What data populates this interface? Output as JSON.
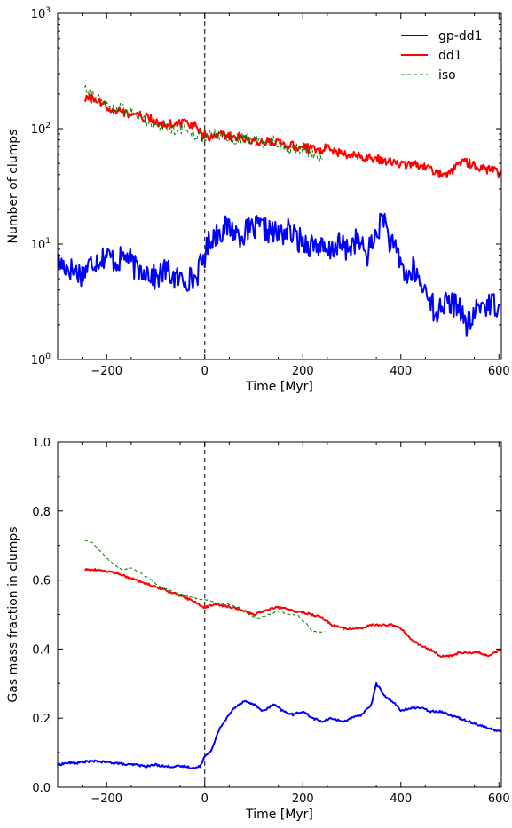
{
  "chart_data": [
    {
      "type": "line",
      "xlabel": "Time [Myr]",
      "ylabel": "Number of clumps",
      "yscale": "log",
      "xlim": [
        -300,
        605
      ],
      "ylim": [
        1,
        1000
      ],
      "x_ticks": [
        "−200",
        "0",
        "200",
        "400",
        "600"
      ],
      "y_ticks": [
        {
          "base": "10",
          "exp": "0"
        },
        {
          "base": "10",
          "exp": "1"
        },
        {
          "base": "10",
          "exp": "2"
        },
        {
          "base": "10",
          "exp": "3"
        }
      ],
      "vline_x": 0,
      "legend_position": "top-right",
      "legend": [
        {
          "label": "gp-dd1",
          "color": "#0000ff",
          "dash": "solid"
        },
        {
          "label": "dd1",
          "color": "#ff0000",
          "dash": "solid"
        },
        {
          "label": "iso",
          "color": "#008000",
          "dash": "dashed"
        }
      ],
      "series": [
        {
          "name": "gp-dd1",
          "color": "#0000ff",
          "dash": "solid",
          "noise": 0.11,
          "x": [
            -300,
            -270,
            -250,
            -230,
            -200,
            -180,
            -160,
            -140,
            -120,
            -100,
            -80,
            -60,
            -40,
            -20,
            -5,
            0,
            10,
            30,
            50,
            70,
            90,
            110,
            130,
            150,
            170,
            190,
            210,
            230,
            250,
            270,
            290,
            310,
            330,
            350,
            365,
            375,
            385,
            395,
            405,
            415,
            425,
            435,
            445,
            455,
            465,
            468,
            480,
            500,
            510,
            520,
            530,
            540,
            560,
            600
          ],
          "y": [
            7,
            6,
            5.5,
            7,
            8,
            7,
            8,
            6,
            6,
            5,
            6,
            5,
            5,
            5,
            7,
            8,
            11,
            13,
            14,
            12,
            13,
            14,
            13,
            12,
            13,
            11,
            10,
            10,
            8,
            10,
            9,
            11,
            8,
            12,
            18,
            11,
            9,
            8,
            6,
            5,
            6,
            5,
            4,
            4,
            3,
            2,
            3,
            3,
            3,
            3,
            2,
            2,
            3,
            3
          ]
        },
        {
          "name": "dd1",
          "color": "#ff0000",
          "dash": "solid",
          "noise": 0.04,
          "x": [
            -245,
            -220,
            -200,
            -180,
            -160,
            -140,
            -120,
            -100,
            -80,
            -60,
            -40,
            -20,
            -10,
            -5,
            0,
            10,
            30,
            50,
            70,
            90,
            110,
            130,
            150,
            170,
            190,
            210,
            230,
            250,
            270,
            290,
            310,
            330,
            350,
            370,
            390,
            410,
            430,
            450,
            470,
            490,
            510,
            530,
            550,
            570,
            590,
            605
          ],
          "y": [
            185,
            175,
            155,
            145,
            135,
            130,
            125,
            115,
            110,
            110,
            115,
            105,
            95,
            80,
            90,
            85,
            90,
            85,
            85,
            80,
            75,
            78,
            75,
            72,
            70,
            68,
            65,
            68,
            62,
            60,
            58,
            56,
            55,
            52,
            50,
            48,
            50,
            46,
            42,
            40,
            45,
            52,
            48,
            45,
            43,
            40
          ]
        },
        {
          "name": "iso",
          "color": "#008000",
          "dash": "dashed",
          "noise": 0.05,
          "x": [
            -245,
            -230,
            -210,
            -190,
            -170,
            -150,
            -130,
            -110,
            -90,
            -70,
            -50,
            -30,
            -10,
            0,
            20,
            40,
            60,
            80,
            100,
            120,
            140,
            160,
            180,
            200,
            220,
            240
          ],
          "y": [
            240,
            200,
            170,
            150,
            150,
            140,
            130,
            110,
            105,
            100,
            100,
            95,
            85,
            85,
            90,
            85,
            80,
            85,
            80,
            75,
            80,
            70,
            65,
            68,
            60,
            55
          ]
        }
      ]
    },
    {
      "type": "line",
      "xlabel": "Time [Myr]",
      "ylabel": "Gas mass fraction in clumps",
      "xlim": [
        -300,
        605
      ],
      "ylim": [
        0.0,
        1.0
      ],
      "x_ticks": [
        "−200",
        "0",
        "200",
        "400",
        "600"
      ],
      "y_ticks": [
        "0.0",
        "0.2",
        "0.4",
        "0.6",
        "0.8",
        "1.0"
      ],
      "vline_x": 0,
      "series": [
        {
          "name": "gp-dd1",
          "color": "#0000ff",
          "dash": "solid",
          "noise": 0.003,
          "x": [
            -300,
            -280,
            -260,
            -240,
            -220,
            -200,
            -180,
            -160,
            -140,
            -120,
            -100,
            -80,
            -60,
            -40,
            -20,
            -10,
            0,
            15,
            30,
            45,
            60,
            80,
            100,
            120,
            140,
            160,
            180,
            200,
            220,
            240,
            260,
            280,
            300,
            320,
            340,
            350,
            360,
            370,
            380,
            390,
            400,
            420,
            440,
            460,
            480,
            500,
            520,
            540,
            560,
            580,
            605
          ],
          "y": [
            0.065,
            0.07,
            0.07,
            0.075,
            0.075,
            0.072,
            0.07,
            0.065,
            0.065,
            0.06,
            0.065,
            0.06,
            0.06,
            0.06,
            0.055,
            0.06,
            0.09,
            0.11,
            0.17,
            0.2,
            0.23,
            0.25,
            0.24,
            0.22,
            0.24,
            0.22,
            0.21,
            0.22,
            0.2,
            0.19,
            0.2,
            0.19,
            0.2,
            0.21,
            0.24,
            0.3,
            0.28,
            0.26,
            0.25,
            0.24,
            0.22,
            0.23,
            0.23,
            0.22,
            0.22,
            0.21,
            0.2,
            0.19,
            0.18,
            0.17,
            0.16
          ]
        },
        {
          "name": "dd1",
          "color": "#ff0000",
          "dash": "solid",
          "noise": 0.003,
          "x": [
            -245,
            -220,
            -200,
            -180,
            -160,
            -140,
            -120,
            -100,
            -80,
            -60,
            -40,
            -20,
            0,
            20,
            40,
            60,
            80,
            100,
            120,
            140,
            160,
            180,
            200,
            220,
            240,
            260,
            280,
            300,
            320,
            340,
            360,
            380,
            400,
            420,
            440,
            460,
            480,
            500,
            520,
            540,
            560,
            580,
            605
          ],
          "y": [
            0.63,
            0.63,
            0.625,
            0.62,
            0.61,
            0.6,
            0.59,
            0.58,
            0.57,
            0.56,
            0.55,
            0.535,
            0.52,
            0.53,
            0.525,
            0.52,
            0.51,
            0.5,
            0.51,
            0.52,
            0.52,
            0.51,
            0.505,
            0.5,
            0.49,
            0.47,
            0.46,
            0.46,
            0.46,
            0.47,
            0.47,
            0.47,
            0.46,
            0.43,
            0.41,
            0.4,
            0.38,
            0.38,
            0.39,
            0.39,
            0.39,
            0.38,
            0.4
          ]
        },
        {
          "name": "iso",
          "color": "#008000",
          "dash": "dashed",
          "noise": 0.002,
          "x": [
            -245,
            -230,
            -210,
            -190,
            -170,
            -150,
            -130,
            -110,
            -90,
            -70,
            -50,
            -30,
            -10,
            10,
            30,
            50,
            70,
            90,
            110,
            130,
            150,
            170,
            190,
            200,
            210,
            220,
            230,
            245
          ],
          "y": [
            0.715,
            0.71,
            0.68,
            0.65,
            0.63,
            0.635,
            0.62,
            0.6,
            0.58,
            0.57,
            0.56,
            0.55,
            0.545,
            0.54,
            0.53,
            0.53,
            0.52,
            0.5,
            0.49,
            0.5,
            0.51,
            0.5,
            0.5,
            0.48,
            0.47,
            0.45,
            0.45,
            0.45
          ]
        }
      ]
    }
  ]
}
